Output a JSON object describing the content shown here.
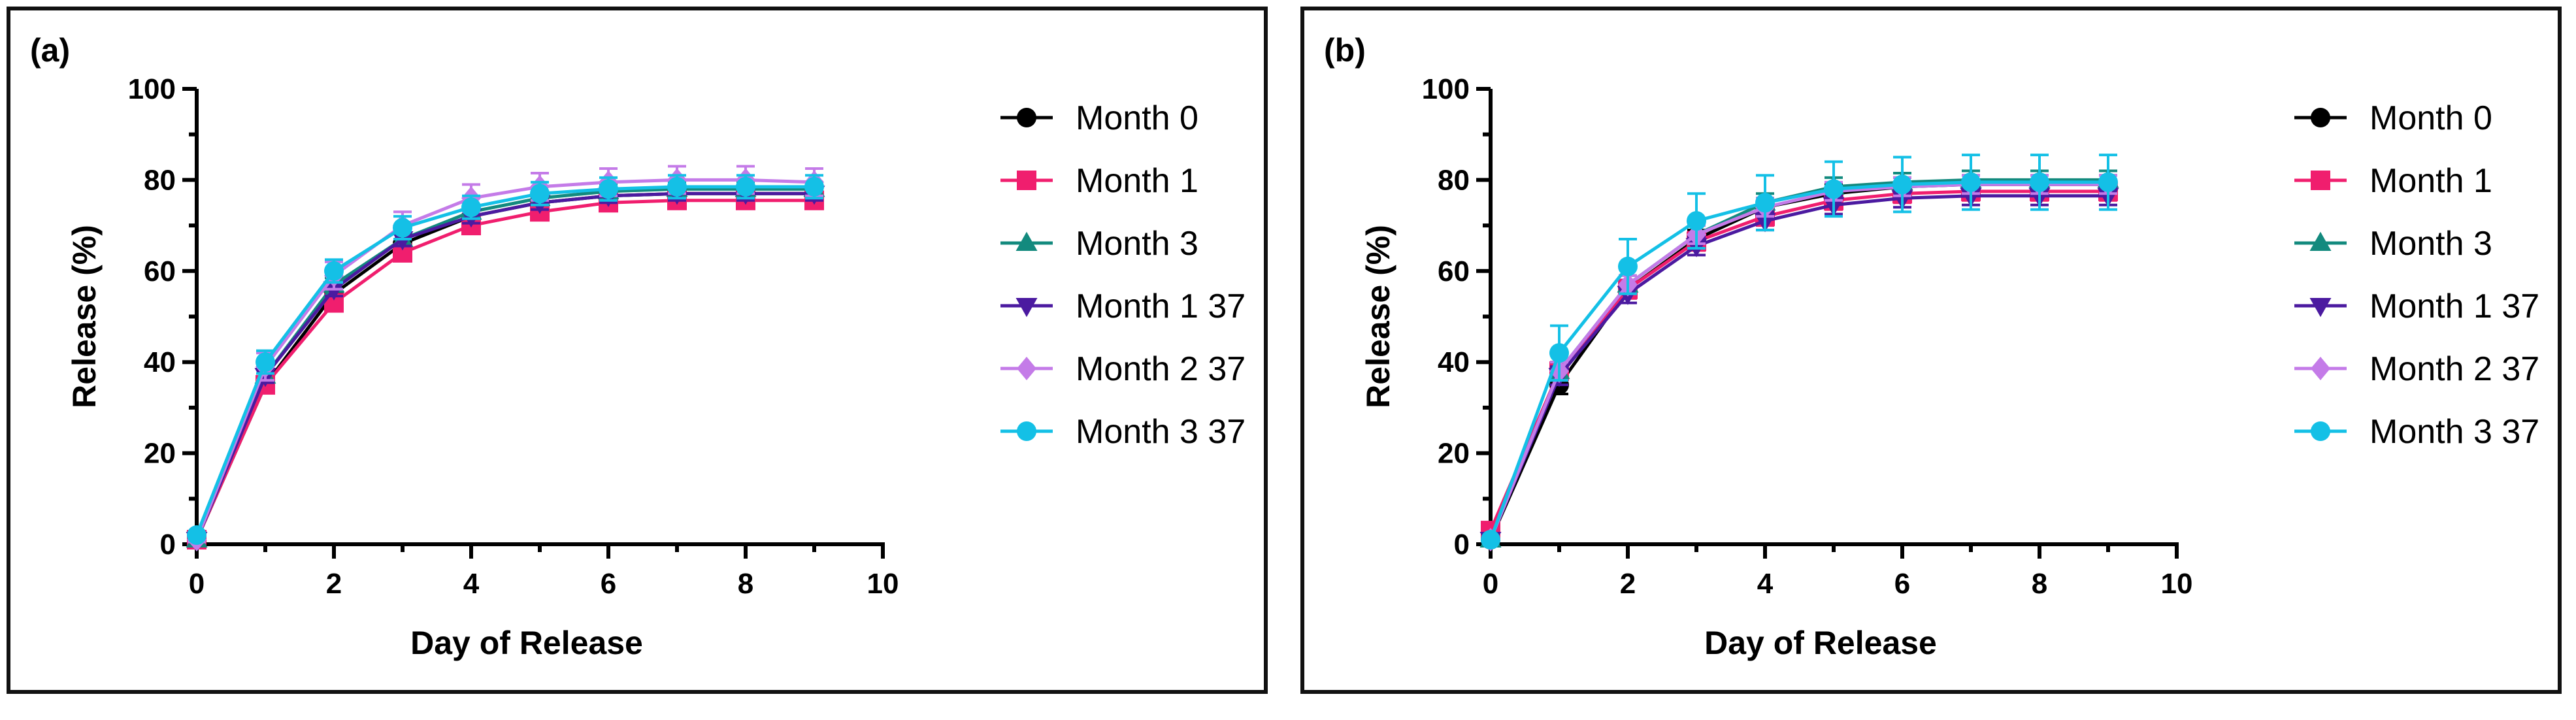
{
  "chart_data": [
    {
      "type": "line",
      "panel_label": "(a)",
      "xlabel": "Day of Release",
      "ylabel": "Release (%)",
      "xlim": [
        0,
        10
      ],
      "ylim": [
        0,
        100
      ],
      "x_ticks": [
        0,
        2,
        4,
        6,
        8,
        10
      ],
      "y_ticks": [
        0,
        20,
        40,
        60,
        80,
        100
      ],
      "x": [
        0,
        1,
        2,
        3,
        4,
        5,
        6,
        7,
        8,
        9
      ],
      "legend_position": "right",
      "series": [
        {
          "name": "Month 0",
          "color": "#000000",
          "marker": "circle",
          "values": [
            1,
            35,
            55,
            66,
            72,
            75,
            76.5,
            77,
            77,
            77
          ],
          "errors": [
            0.5,
            1,
            1,
            1,
            1,
            1,
            1,
            1,
            1,
            1
          ]
        },
        {
          "name": "Month 1",
          "color": "#f01e6e",
          "marker": "square",
          "values": [
            1,
            35,
            53,
            64,
            70,
            73,
            75,
            75.5,
            75.5,
            75.5
          ],
          "errors": [
            0.5,
            1,
            1,
            1,
            1,
            1,
            1,
            1,
            1,
            1
          ]
        },
        {
          "name": "Month 3",
          "color": "#138a7e",
          "marker": "triangle-up",
          "values": [
            1,
            37,
            57,
            67,
            73,
            76,
            77.5,
            78,
            78,
            78
          ],
          "errors": [
            0.5,
            1.5,
            1.5,
            1.5,
            1.5,
            1.5,
            1.5,
            1.5,
            1.5,
            1.5
          ]
        },
        {
          "name": "Month 1 37",
          "color": "#4b1aa0",
          "marker": "triangle-down",
          "values": [
            1,
            37,
            56,
            67,
            72,
            75,
            76.5,
            77,
            77,
            77
          ],
          "errors": [
            0.5,
            1.5,
            1.5,
            1.5,
            1.5,
            1.5,
            1.5,
            1.5,
            1.5,
            1.5
          ]
        },
        {
          "name": "Month 2 37",
          "color": "#c47be8",
          "marker": "diamond",
          "values": [
            1,
            39,
            59,
            70,
            76,
            78.5,
            79.5,
            80,
            80,
            79.5
          ],
          "errors": [
            0.5,
            3,
            3,
            3,
            3,
            3,
            3,
            3,
            3,
            3
          ]
        },
        {
          "name": "Month 3 37",
          "color": "#14c0e6",
          "marker": "circle",
          "values": [
            2,
            40,
            60,
            69.5,
            74,
            77,
            78,
            78.5,
            78.5,
            78.5
          ],
          "errors": [
            0.5,
            2.5,
            2.5,
            2.5,
            2.5,
            2.5,
            2.5,
            2.5,
            2.5,
            2.5
          ]
        }
      ]
    },
    {
      "type": "line",
      "panel_label": "(b)",
      "xlabel": "Day of Release",
      "ylabel": "Release (%)",
      "xlim": [
        0,
        10
      ],
      "ylim": [
        0,
        100
      ],
      "x_ticks": [
        0,
        2,
        4,
        6,
        8,
        10
      ],
      "y_ticks": [
        0,
        20,
        40,
        60,
        80,
        100
      ],
      "x": [
        0,
        1,
        2,
        3,
        4,
        5,
        6,
        7,
        8,
        9
      ],
      "legend_position": "right",
      "series": [
        {
          "name": "Month 0",
          "color": "#000000",
          "marker": "circle",
          "values": [
            1,
            35,
            56,
            67,
            74,
            77,
            78.5,
            79,
            79,
            79
          ],
          "errors": [
            0.5,
            2,
            2,
            2,
            2,
            2,
            2,
            2,
            2,
            2
          ]
        },
        {
          "name": "Month 1",
          "color": "#f01e6e",
          "marker": "square",
          "values": [
            3,
            38,
            56,
            66.5,
            72,
            75.5,
            77,
            77.5,
            77.5,
            77.5
          ],
          "errors": [
            0.5,
            2,
            2,
            2,
            2,
            2,
            2,
            2,
            2,
            2
          ]
        },
        {
          "name": "Month 3",
          "color": "#138a7e",
          "marker": "triangle-up",
          "values": [
            1,
            38,
            57,
            68,
            75,
            78.5,
            79.5,
            80,
            80,
            80
          ],
          "errors": [
            0.5,
            2,
            2,
            2,
            2,
            2,
            2,
            2,
            2,
            2
          ]
        },
        {
          "name": "Month 1 37",
          "color": "#4b1aa0",
          "marker": "triangle-down",
          "values": [
            1,
            37,
            55,
            65.5,
            71,
            74.5,
            76,
            76.5,
            76.5,
            76.5
          ],
          "errors": [
            0.5,
            2,
            2,
            2,
            2,
            2,
            2,
            2,
            2,
            2
          ]
        },
        {
          "name": "Month 2 37",
          "color": "#c47be8",
          "marker": "diamond",
          "values": [
            1,
            38,
            57,
            68,
            74,
            77.5,
            78.5,
            79,
            79,
            79
          ],
          "errors": [
            0.5,
            2,
            2,
            2,
            2,
            2,
            2,
            2,
            2,
            2
          ]
        },
        {
          "name": "Month 3 37",
          "color": "#14c0e6",
          "marker": "circle",
          "values": [
            1,
            42,
            61,
            71,
            75,
            78,
            79,
            79.5,
            79.5,
            79.5
          ],
          "errors": [
            0.5,
            6,
            6,
            6,
            6,
            6,
            6,
            6,
            6,
            6
          ]
        }
      ]
    }
  ]
}
